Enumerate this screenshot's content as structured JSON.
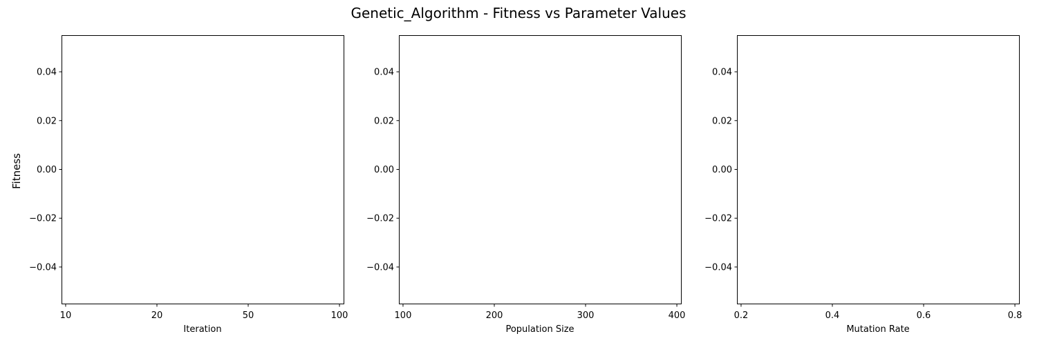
{
  "figure": {
    "suptitle": "Genetic_Algorithm - Fitness vs Parameter Values",
    "ylabel": "Fitness"
  },
  "chart_data": [
    {
      "type": "line",
      "title": "",
      "xlabel": "Iteration",
      "ylabel": "Fitness",
      "xscale": "categorical",
      "categories": [
        "10",
        "20",
        "50",
        "100"
      ],
      "ylim": [
        -0.055,
        0.055
      ],
      "yticks": [
        -0.04,
        -0.02,
        0.0,
        0.02,
        0.04
      ],
      "ytick_labels": [
        "−0.04",
        "−0.02",
        "0.00",
        "0.02",
        "0.04"
      ],
      "series": [],
      "grid": false
    },
    {
      "type": "line",
      "title": "",
      "xlabel": "Population Size",
      "ylabel": "Fitness",
      "xlim": [
        100,
        400
      ],
      "xticks": [
        100,
        200,
        300,
        400
      ],
      "xtick_labels": [
        "100",
        "200",
        "300",
        "400"
      ],
      "ylim": [
        -0.055,
        0.055
      ],
      "yticks": [
        -0.04,
        -0.02,
        0.0,
        0.02,
        0.04
      ],
      "ytick_labels": [
        "−0.04",
        "−0.02",
        "0.00",
        "0.02",
        "0.04"
      ],
      "series": [],
      "grid": false
    },
    {
      "type": "line",
      "title": "",
      "xlabel": "Mutation Rate",
      "ylabel": "Fitness",
      "xlim": [
        0.2,
        0.8
      ],
      "xticks": [
        0.2,
        0.4,
        0.6,
        0.8
      ],
      "xtick_labels": [
        "0.2",
        "0.4",
        "0.6",
        "0.8"
      ],
      "ylim": [
        -0.055,
        0.055
      ],
      "yticks": [
        -0.04,
        -0.02,
        0.0,
        0.02,
        0.04
      ],
      "ytick_labels": [
        "−0.04",
        "−0.02",
        "0.00",
        "0.02",
        "0.04"
      ],
      "series": [],
      "grid": false
    }
  ]
}
